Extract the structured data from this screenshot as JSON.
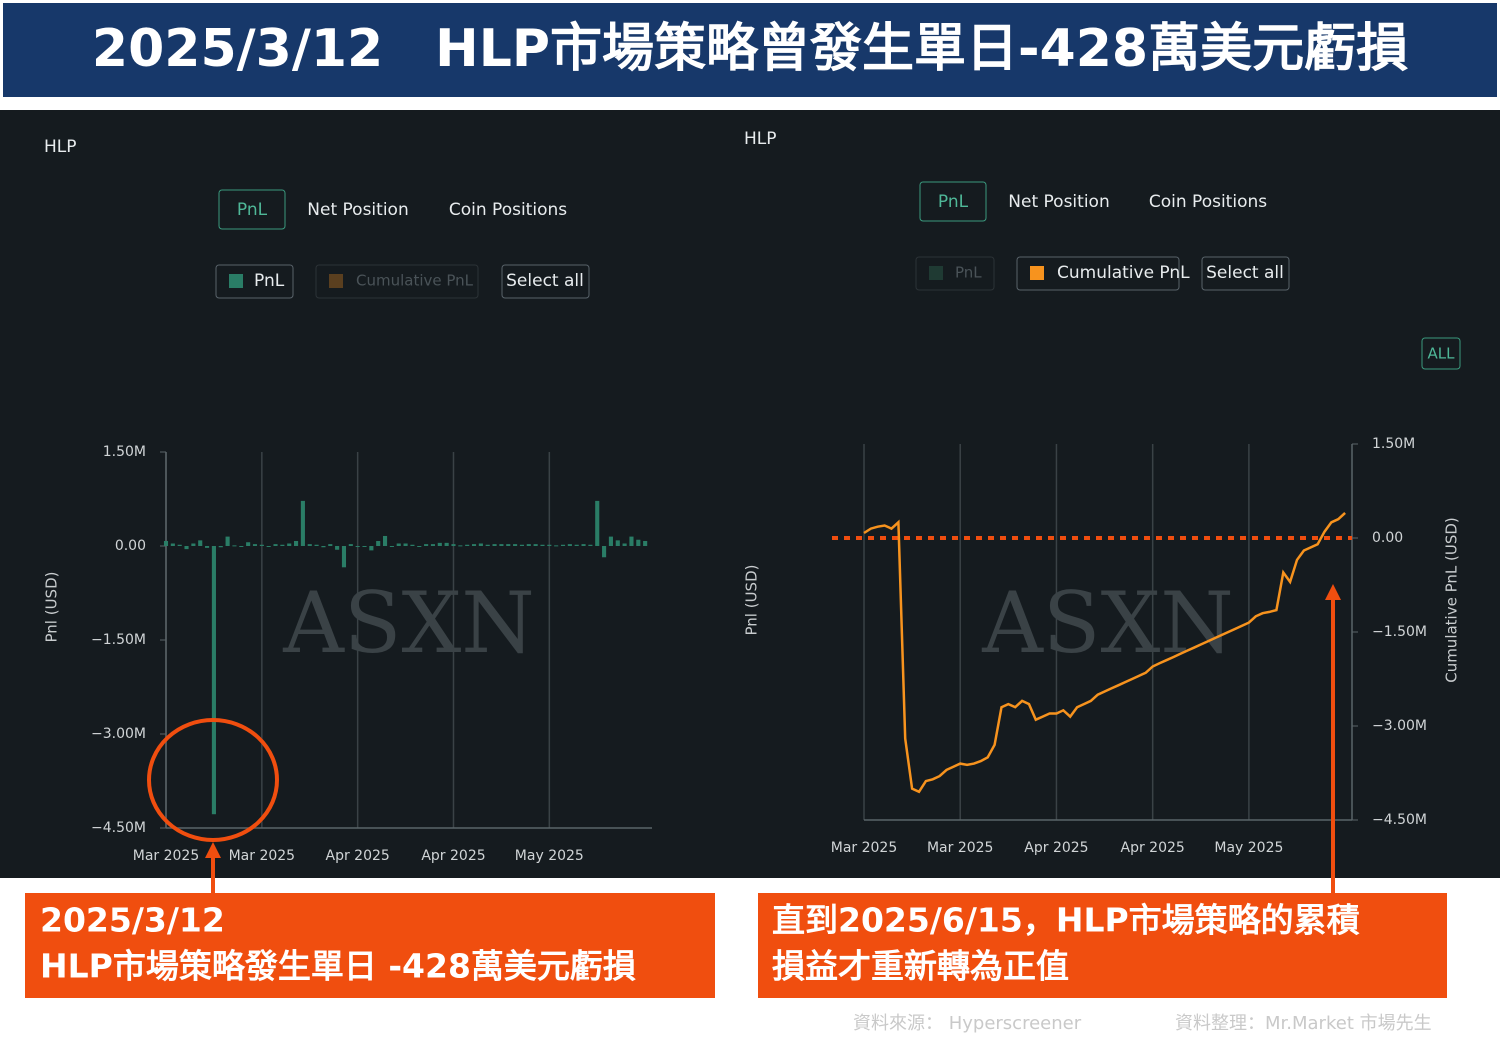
{
  "header": {
    "title": "2025/3/12　HLP市場策略曾發生單日-428萬美元虧損"
  },
  "panels": [
    {
      "title": "HLP",
      "tabs": [
        "PnL",
        "Net Position",
        "Coin Positions"
      ],
      "toggles": [
        "Cumulative PnL",
        "Select all"
      ]
    },
    {
      "title": "HLP",
      "tabs": [
        "PnL",
        "Net Position",
        "Coin Positions"
      ],
      "toggles": [
        "PnL",
        "Select all"
      ],
      "range_button": "ALL"
    }
  ],
  "chart_data": [
    {
      "type": "bar",
      "watermark": "ASXN",
      "y_label": "Pnl (USD)",
      "xlim": [
        0,
        71
      ],
      "xticks": [
        {
          "value": 0,
          "label": "Mar 2025"
        },
        {
          "value": 14,
          "label": "Mar 2025"
        },
        {
          "value": 28,
          "label": "Apr 2025"
        },
        {
          "value": 42,
          "label": "Apr 2025"
        },
        {
          "value": 56,
          "label": "May 2025"
        }
      ],
      "ylim": [
        -4500000,
        1500000
      ],
      "yticks": [
        {
          "value": 1500000,
          "label": "1.50M"
        },
        {
          "value": 0,
          "label": "0.00"
        },
        {
          "value": -1500000,
          "label": "−1.50M"
        },
        {
          "value": -3000000,
          "label": "−3.00M"
        },
        {
          "value": -4500000,
          "label": "−4.50M"
        }
      ],
      "grid": "x",
      "series": [
        {
          "name": "PnL",
          "color": "#2a7d66",
          "values": [
            80000,
            40000,
            20000,
            -50000,
            40000,
            90000,
            -30000,
            -4280000,
            -20000,
            150000,
            10000,
            0,
            60000,
            30000,
            20000,
            -10000,
            30000,
            20000,
            40000,
            80000,
            720000,
            30000,
            20000,
            -20000,
            30000,
            -60000,
            -340000,
            30000,
            -10000,
            0,
            -70000,
            80000,
            160000,
            0,
            40000,
            40000,
            20000,
            0,
            30000,
            30000,
            50000,
            50000,
            30000,
            10000,
            20000,
            30000,
            40000,
            20000,
            30000,
            30000,
            30000,
            30000,
            20000,
            30000,
            30000,
            20000,
            20000,
            10000,
            20000,
            30000,
            20000,
            30000,
            20000,
            720000,
            -180000,
            150000,
            90000,
            40000,
            150000,
            100000,
            80000
          ]
        }
      ]
    },
    {
      "type": "line",
      "watermark": "ASXN",
      "y_label": "Pnl (USD)",
      "y2_label": "Cumulative PnL (USD)",
      "xlim": [
        0,
        71
      ],
      "xticks": [
        {
          "value": 0,
          "label": "Mar 2025"
        },
        {
          "value": 14,
          "label": "Mar 2025"
        },
        {
          "value": 28,
          "label": "Apr 2025"
        },
        {
          "value": 42,
          "label": "Apr 2025"
        },
        {
          "value": 56,
          "label": "May 2025"
        }
      ],
      "y2lim": [
        -4500000,
        1500000
      ],
      "y2ticks": [
        {
          "value": 1500000,
          "label": "1.50M"
        },
        {
          "value": 0,
          "label": "0.00"
        },
        {
          "value": -1500000,
          "label": "−1.50M"
        },
        {
          "value": -3000000,
          "label": "−3.00M"
        },
        {
          "value": -4500000,
          "label": "−4.50M"
        }
      ],
      "grid": "x",
      "reference_line": 0,
      "reference_color": "#f04e0f",
      "series": [
        {
          "name": "Cumulative PnL",
          "color": "#f7931e",
          "axis": "y2",
          "values": [
            80000,
            150000,
            180000,
            200000,
            150000,
            250000,
            -3200000,
            -4000000,
            -4050000,
            -3880000,
            -3850000,
            -3800000,
            -3700000,
            -3650000,
            -3600000,
            -3620000,
            -3600000,
            -3560000,
            -3500000,
            -3300000,
            -2700000,
            -2650000,
            -2700000,
            -2600000,
            -2650000,
            -2900000,
            -2850000,
            -2800000,
            -2800000,
            -2750000,
            -2850000,
            -2700000,
            -2650000,
            -2600000,
            -2500000,
            -2450000,
            -2400000,
            -2350000,
            -2300000,
            -2250000,
            -2200000,
            -2150000,
            -2050000,
            -2000000,
            -1950000,
            -1900000,
            -1850000,
            -1800000,
            -1750000,
            -1700000,
            -1650000,
            -1600000,
            -1550000,
            -1500000,
            -1450000,
            -1400000,
            -1350000,
            -1250000,
            -1200000,
            -1180000,
            -1150000,
            -550000,
            -700000,
            -350000,
            -200000,
            -150000,
            -100000,
            100000,
            250000,
            300000,
            400000
          ]
        }
      ]
    }
  ],
  "annotations": [
    {
      "lines": [
        "2025/3/12",
        "HLP市場策略發生單日 -428萬美元虧損"
      ]
    },
    {
      "lines": [
        "直到2025/6/15，HLP市場策略的累積",
        "損益才重新轉為正值"
      ]
    }
  ],
  "footer": {
    "source": "資料來源：  Hyperscreener",
    "author": "資料整理：Mr.Market 市場先生"
  }
}
